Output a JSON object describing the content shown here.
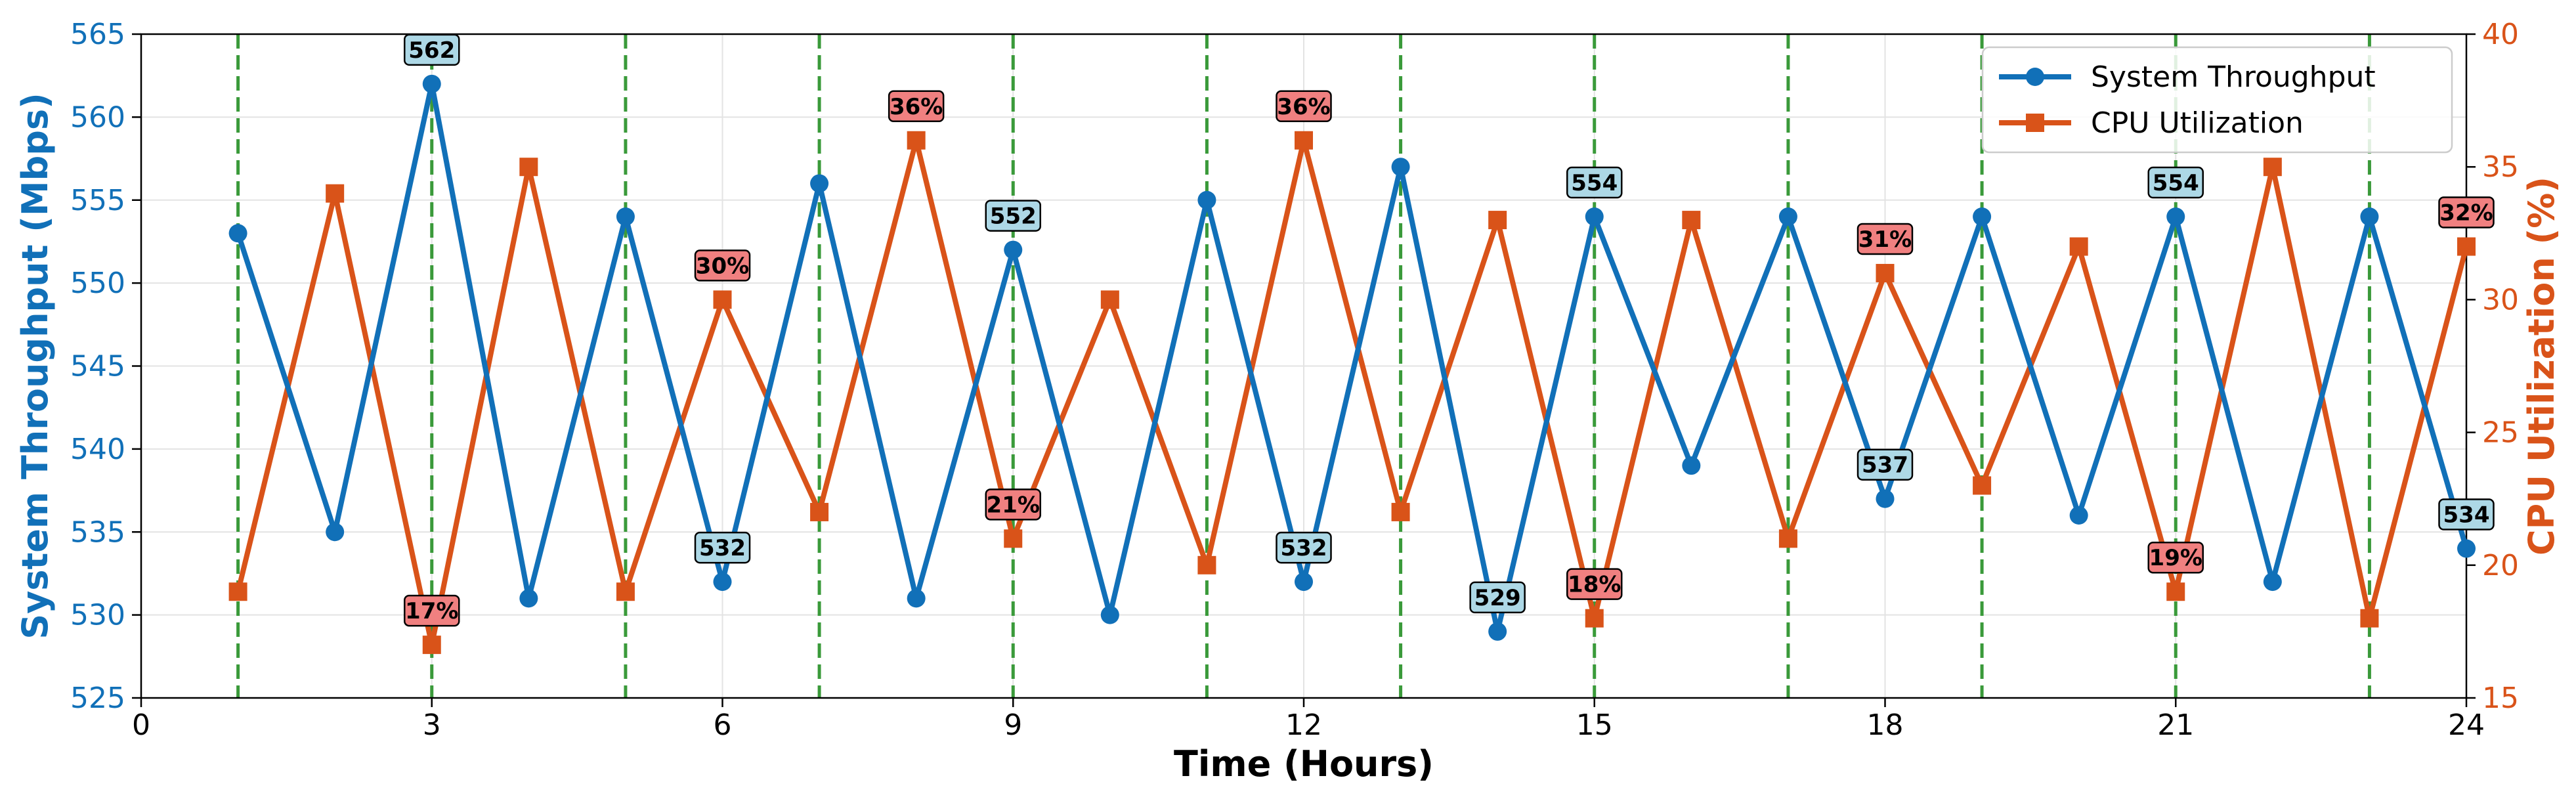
{
  "chart_data": {
    "type": "line",
    "x": [
      1,
      2,
      3,
      4,
      5,
      6,
      7,
      8,
      9,
      10,
      11,
      12,
      13,
      14,
      15,
      16,
      17,
      18,
      19,
      20,
      21,
      22,
      23,
      24
    ],
    "series": [
      {
        "name": "System Throughput",
        "axis": "left",
        "color": "#1170b8",
        "marker": "circle",
        "values": [
          553,
          535,
          562,
          531,
          554,
          532,
          556,
          531,
          552,
          530,
          555,
          532,
          557,
          529,
          554,
          539,
          554,
          537,
          554,
          536,
          554,
          532,
          554,
          534
        ]
      },
      {
        "name": "CPU Utilization",
        "axis": "right",
        "color": "#d95319",
        "marker": "square",
        "values": [
          19,
          34,
          17,
          35,
          19,
          30,
          22,
          36,
          21,
          30,
          20,
          36,
          22,
          33,
          18,
          33,
          21,
          31,
          23,
          32,
          19,
          35,
          18,
          32
        ]
      }
    ],
    "annotations": {
      "throughput": [
        {
          "x": 3,
          "text": "562"
        },
        {
          "x": 6,
          "text": "532"
        },
        {
          "x": 9,
          "text": "552"
        },
        {
          "x": 12,
          "text": "532"
        },
        {
          "x": 14,
          "text": "529"
        },
        {
          "x": 15,
          "text": "554"
        },
        {
          "x": 18,
          "text": "537"
        },
        {
          "x": 21,
          "text": "554"
        },
        {
          "x": 24,
          "text": "534"
        }
      ],
      "cpu": [
        {
          "x": 3,
          "text": "17%"
        },
        {
          "x": 6,
          "text": "30%"
        },
        {
          "x": 8,
          "text": "36%"
        },
        {
          "x": 9,
          "text": "21%"
        },
        {
          "x": 12,
          "text": "36%"
        },
        {
          "x": 15,
          "text": "18%"
        },
        {
          "x": 18,
          "text": "31%"
        },
        {
          "x": 21,
          "text": "19%"
        },
        {
          "x": 24,
          "text": "32%"
        }
      ]
    },
    "vlines": [
      1,
      3,
      5,
      7,
      9,
      11,
      13,
      15,
      17,
      19,
      21,
      23
    ],
    "xlabel": "Time (Hours)",
    "ylabel_left": "System Throughput (Mbps)",
    "ylabel_right": "CPU Utilization (%)",
    "xlim": [
      0,
      24
    ],
    "ylim_left": [
      525,
      565
    ],
    "ylim_right": [
      15,
      40
    ],
    "xticks": [
      "0",
      "3",
      "6",
      "9",
      "12",
      "15",
      "18",
      "21",
      "24"
    ],
    "yticks_left": [
      "525",
      "530",
      "535",
      "540",
      "545",
      "550",
      "555",
      "560",
      "565"
    ],
    "yticks_right": [
      "15",
      "20",
      "25",
      "30",
      "35",
      "40"
    ],
    "grid": true,
    "legend_position": "top-right",
    "colors": {
      "throughput": "#1170b8",
      "cpu": "#d95319",
      "vline": "#3a9a3a",
      "throughput_label_bg": "#add8e6",
      "cpu_label_bg": "#f08080"
    }
  }
}
